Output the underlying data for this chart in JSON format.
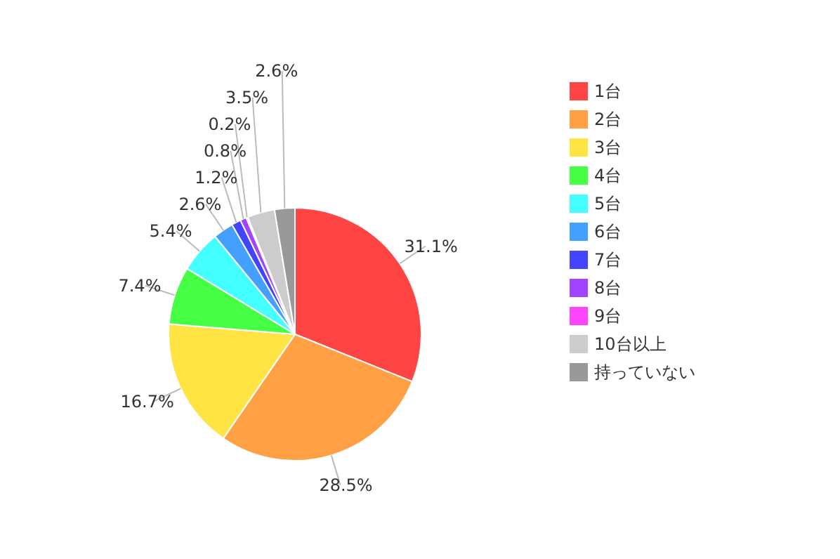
{
  "chart_data": {
    "type": "pie",
    "categories": [
      "1台",
      "2台",
      "3台",
      "4台",
      "5台",
      "6台",
      "7台",
      "8台",
      "9台",
      "10台以上",
      "持っていない"
    ],
    "values": [
      31.1,
      28.5,
      16.7,
      7.4,
      5.4,
      2.6,
      1.2,
      0.8,
      0.2,
      3.5,
      2.6
    ],
    "value_labels": [
      "31.1%",
      "28.5%",
      "16.7%",
      "7.4%",
      "5.4%",
      "2.6%",
      "1.2%",
      "0.8%",
      "0.2%",
      "3.5%",
      "2.6%"
    ],
    "colors": [
      "#ff4444",
      "#ffa044",
      "#ffe444",
      "#44ff44",
      "#44ffff",
      "#44a0ff",
      "#4444ff",
      "#a044ff",
      "#ff44ff",
      "#cccccc",
      "#999999"
    ],
    "legend": "right"
  }
}
